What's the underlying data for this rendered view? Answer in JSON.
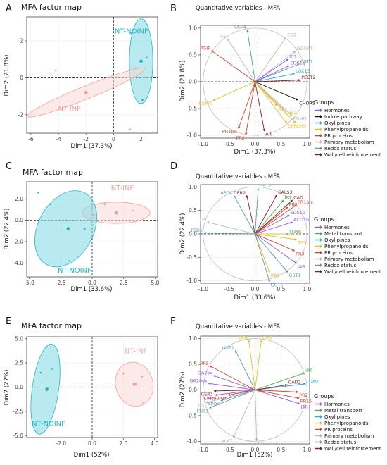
{
  "colors": {
    "nt_inf": "#f4a09a",
    "nt_inf_fill": "#f9d9d5",
    "nt_noinf": "#22b8c8",
    "nt_noinf_fill": "#7fd8e2",
    "Hormones": "#8b5cf6",
    "Indole pathway": "#111111",
    "Oxylipines": "#2aa9e0",
    "Phenylpropanoids": "#e7c31a",
    "PR proteins": "#d8402b",
    "Primary metabolism": "#b7b7b7",
    "Redox status": "#5b9aa8",
    "Wall/cell reinforcement": "#8b1a1a",
    "Metal transport": "#3db54a"
  },
  "panels": [
    {
      "letter": "A",
      "chart_data": {
        "type": "scatter",
        "title": "MFA factor map",
        "xlabel": "Dim1 (37.3%)",
        "ylabel": "Dim2 (21.8%)",
        "xlim": [
          -6.3,
          3.2
        ],
        "ylim": [
          -3.0,
          3.3
        ],
        "xticks": [
          -6,
          -4,
          -2,
          0,
          2
        ],
        "yticks": [
          -2,
          0,
          2
        ],
        "groups": [
          {
            "name": "NT-NOINF",
            "color": "nt_noinf",
            "label_at": [
              1.3,
              2.4
            ],
            "centroid": [
              2.0,
              0.9
            ],
            "ellipse": {
              "cx": 2.0,
              "cy": 0.9,
              "rx": 0.85,
              "ry": 2.3,
              "angle": 0
            },
            "points": [
              [
                1.3,
                2.4
              ],
              [
                2.4,
                1.1
              ],
              [
                2.1,
                -1.2
              ]
            ]
          },
          {
            "name": "NT-INF",
            "color": "nt_inf",
            "label_at": [
              -3.2,
              -1.8
            ],
            "centroid": [
              -2.0,
              -0.8
            ],
            "ellipse": {
              "cx": -2.0,
              "cy": -0.8,
              "rx": 4.6,
              "ry": 0.35,
              "angle": -22
            },
            "points": [
              [
                -4.2,
                0.4
              ],
              [
                -2.0,
                -0.8
              ],
              [
                1.2,
                -2.8
              ]
            ]
          }
        ]
      }
    },
    {
      "letter": "B",
      "chart_data": {
        "type": "correlation-circle",
        "title": "Quantitative variables - MFA",
        "xlabel": "Dim1 (37.3%)",
        "ylabel": "Dim2 (21.8%)",
        "xlim": [
          -1.05,
          1.05
        ],
        "ylim": [
          -1.05,
          1.05
        ],
        "ticks": [
          -1.0,
          -0.5,
          0.0,
          0.5,
          1.0
        ],
        "legend_title": "Groups",
        "legend": [
          "Hormones",
          "Indole pathway",
          "Oxylipines",
          "Phenylpropanoids",
          "PR proteins",
          "Primary metabolism",
          "Redox status",
          "Wall/cell reinforcement"
        ],
        "variables": [
          {
            "name": "GST4",
            "x": -0.15,
            "y": 0.97,
            "group": "Redox status"
          },
          {
            "name": "GS",
            "x": -0.53,
            "y": 0.8,
            "group": "Primary metabolism"
          },
          {
            "name": "CS2",
            "x": 0.6,
            "y": 0.83,
            "group": "Primary metabolism"
          },
          {
            "name": "PGIP",
            "x": -0.84,
            "y": 0.58,
            "group": "PR proteins"
          },
          {
            "name": "GOGAT",
            "x": 0.78,
            "y": 0.57,
            "group": "Primary metabolism"
          },
          {
            "name": "ICS",
            "x": 0.64,
            "y": 0.42,
            "group": "Hormones"
          },
          {
            "name": "EDS1b",
            "x": 0.66,
            "y": 0.3,
            "group": "Hormones"
          },
          {
            "name": "GST3",
            "x": 0.85,
            "y": 0.33,
            "group": "Redox status"
          },
          {
            "name": "LOX13",
            "x": 0.76,
            "y": 0.15,
            "group": "Oxylipines"
          },
          {
            "name": "PECT2",
            "x": 0.87,
            "y": 0.03,
            "group": "Wall/cell reinforcement"
          },
          {
            "name": "RDMT",
            "x": -0.81,
            "y": -0.35,
            "group": "Phenylpropanoids"
          },
          {
            "name": "CHORS",
            "x": 0.83,
            "y": -0.34,
            "group": "Indole pathway"
          },
          {
            "name": "GS2",
            "x": 0.42,
            "y": -0.45,
            "group": "Primary metabolism"
          },
          {
            "name": "CHS2",
            "x": 0.55,
            "y": -0.52,
            "group": "Phenylpropanoids"
          },
          {
            "name": "PGMD",
            "x": 0.71,
            "y": -0.63,
            "group": "Primary metabolism"
          },
          {
            "name": "DFR",
            "x": 0.61,
            "y": -0.77,
            "group": "Phenylpropanoids"
          },
          {
            "name": "CHS",
            "x": 0.78,
            "y": -0.77,
            "group": "Phenylpropanoids"
          },
          {
            "name": "PR1bis",
            "x": -0.32,
            "y": -0.87,
            "group": "PR proteins"
          },
          {
            "name": "PR2",
            "x": -0.18,
            "y": -0.99,
            "group": "PR proteins"
          },
          {
            "name": "Alli",
            "x": 0.18,
            "y": -0.92,
            "group": "Wall/cell reinforcement"
          }
        ]
      }
    },
    {
      "letter": "C",
      "chart_data": {
        "type": "scatter",
        "title": "MFA factor map",
        "xlabel": "Dim1 (33.6%)",
        "ylabel": "Dim2 (22.4%)",
        "xlim": [
          -5.2,
          5.2
        ],
        "ylim": [
          -5.3,
          3.6
        ],
        "xticks": [
          -5.0,
          -2.5,
          0.0,
          2.5,
          5.0
        ],
        "yticks": [
          -4,
          -2,
          0,
          2
        ],
        "groups": [
          {
            "name": "NT-INF",
            "color": "nt_inf",
            "label_at": [
              2.4,
              2.8
            ],
            "centroid": [
              1.9,
              0.7
            ],
            "ellipse": {
              "cx": 1.9,
              "cy": 0.7,
              "rx": 2.7,
              "ry": 1.0,
              "angle": 0
            },
            "points": [
              [
                1.0,
                1.5
              ],
              [
                3.2,
                0.9
              ],
              [
                2.0,
                0.6
              ],
              [
                0.1,
                0.5
              ]
            ]
          },
          {
            "name": "NT-NOINF",
            "color": "nt_noinf",
            "label_at": [
              -1.4,
              -4.9
            ],
            "centroid": [
              -1.9,
              -0.8
            ],
            "ellipse": {
              "cx": -2.1,
              "cy": -0.8,
              "rx": 2.2,
              "ry": 3.8,
              "angle": 28
            },
            "points": [
              [
                -4.3,
                2.6
              ],
              [
                -3.3,
                1.5
              ],
              [
                -1.9,
                -0.7
              ],
              [
                -0.6,
                -0.8
              ],
              [
                -1.8,
                -3.8
              ]
            ]
          }
        ]
      }
    },
    {
      "letter": "D",
      "chart_data": {
        "type": "correlation-circle",
        "title": "Quantitative variables - MFA",
        "xlabel": "Dim1 (33.6%)",
        "ylabel": "Dim2 (22.4%)",
        "xlim": [
          -1.05,
          1.05
        ],
        "ylim": [
          -1.05,
          1.05
        ],
        "ticks": [
          -1.0,
          -0.5,
          0.0,
          0.5,
          1.0
        ],
        "legend_title": "Groups",
        "legend": [
          "Hormones",
          "Metal transport",
          "Oxylipines",
          "Phenylpropanoids",
          "PR proteins",
          "Primary metabolism",
          "Redox status",
          "Wall/cell reinforcement"
        ],
        "variables": [
          {
            "name": "GST2",
            "x": 0.06,
            "y": 0.97,
            "group": "Redox status"
          },
          {
            "name": "APOX",
            "x": -0.41,
            "y": 0.82,
            "group": "Redox status"
          },
          {
            "name": "CER2",
            "x": -0.16,
            "y": 0.82,
            "group": "Wall/cell reinforcement"
          },
          {
            "name": "CALS3",
            "x": 0.42,
            "y": 0.83,
            "group": "Wall/cell reinforcement"
          },
          {
            "name": "IRT",
            "x": 0.55,
            "y": 0.72,
            "group": "Metal transport"
          },
          {
            "name": "CAD",
            "x": 0.72,
            "y": 0.72,
            "group": "Wall/cell reinforcement"
          },
          {
            "name": "PR1bis",
            "x": 0.8,
            "y": 0.62,
            "group": "PR proteins"
          },
          {
            "name": "PR2",
            "x": 0.63,
            "y": 0.57,
            "group": "PR proteins"
          },
          {
            "name": "EDS1b",
            "x": 0.66,
            "y": 0.4,
            "group": "Hormones"
          },
          {
            "name": "ACO1b",
            "x": 0.72,
            "y": 0.25,
            "group": "Hormones"
          },
          {
            "name": "GS",
            "x": -0.92,
            "y": 0.25,
            "group": "Primary metabolism"
          },
          {
            "name": "FSD1",
            "x": -0.99,
            "y": 0.02,
            "group": "Redox status"
          },
          {
            "name": "LOX6",
            "x": 0.64,
            "y": 0.0,
            "group": "Oxylipines"
          },
          {
            "name": "PAL",
            "x": 0.74,
            "y": 0.0,
            "group": "Phenylpropanoids"
          },
          {
            "name": "STS",
            "x": 0.8,
            "y": -0.12,
            "group": "Phenylpropanoids"
          },
          {
            "name": "PR3",
            "x": 0.76,
            "y": -0.36,
            "group": "PR proteins"
          },
          {
            "name": "JAR",
            "x": 0.8,
            "y": -0.63,
            "group": "Hormones"
          },
          {
            "name": "BAS",
            "x": 0.28,
            "y": -0.82,
            "group": "Phenylpropanoids"
          },
          {
            "name": "GST1",
            "x": 0.63,
            "y": -0.82,
            "group": "Redox status"
          },
          {
            "name": "GGT5",
            "x": 0.28,
            "y": -1.02,
            "group": "Redox status"
          }
        ]
      }
    },
    {
      "letter": "E",
      "chart_data": {
        "type": "scatter",
        "title": "MFA factor map",
        "xlabel": "Dim1 (52%)",
        "ylabel": "Dim2 (27%)",
        "xlim": [
          -4.2,
          4.2
        ],
        "ylim": [
          -5.2,
          5.2
        ],
        "xticks": [
          -2,
          0,
          2,
          4
        ],
        "yticks": [
          -5.0,
          -2.5,
          0.0,
          2.5,
          5.0
        ],
        "groups": [
          {
            "name": "NT-INF",
            "color": "nt_inf",
            "label_at": [
              2.8,
              3.5
            ],
            "centroid": [
              2.7,
              0.3
            ],
            "ellipse": {
              "cx": 2.7,
              "cy": 0.3,
              "rx": 1.2,
              "ry": 2.3,
              "angle": -15
            },
            "points": [
              [
                2.0,
                1.4
              ],
              [
                3.2,
                1.1
              ],
              [
                2.8,
                0.3
              ],
              [
                3.3,
                -1.6
              ]
            ]
          },
          {
            "name": "NT-NOINF",
            "color": "nt_noinf",
            "label_at": [
              -2.8,
              -4.0
            ],
            "centroid": [
              -2.9,
              -0.2
            ],
            "ellipse": {
              "cx": -3.0,
              "cy": -0.2,
              "rx": 0.85,
              "ry": 4.7,
              "angle": 8
            },
            "points": [
              [
                -3.3,
                1.5
              ],
              [
                -2.6,
                1.9
              ],
              [
                -2.9,
                -0.3
              ],
              [
                -3.0,
                -3.6
              ]
            ]
          }
        ]
      }
    },
    {
      "letter": "F",
      "chart_data": {
        "type": "correlation-circle",
        "title": "Quantitative variables - MFA",
        "xlabel": "Dim1 (52%)",
        "ylabel": "Dim2 (27%)",
        "xlim": [
          -1.05,
          1.05
        ],
        "ylim": [
          -1.05,
          1.05
        ],
        "ticks": [
          -1.0,
          -0.5,
          0.0,
          0.5,
          1.0
        ],
        "legend_title": "Groups",
        "legend": [
          "Hormones",
          "Metal transport",
          "Oxylipines",
          "Phenylpropanoids",
          "PR proteins",
          "Primary metabolism",
          "Redox status",
          "Wall/cell reinforcement"
        ],
        "variables": [
          {
            "name": "DFR",
            "x": -0.12,
            "y": 0.97,
            "group": "Phenylpropanoids"
          },
          {
            "name": "CHS",
            "x": 0.12,
            "y": 0.97,
            "group": "Phenylpropanoids"
          },
          {
            "name": "GST2",
            "x": -0.38,
            "y": 0.77,
            "group": "Redox status"
          },
          {
            "name": "PR5",
            "x": -0.87,
            "y": 0.47,
            "group": "PR proteins"
          },
          {
            "name": "GA2ox",
            "x": -0.8,
            "y": 0.28,
            "group": "Hormones"
          },
          {
            "name": "GA20ox",
            "x": -0.9,
            "y": 0.13,
            "group": "Hormones"
          },
          {
            "name": "IRT",
            "x": 0.95,
            "y": 0.33,
            "group": "Metal transport"
          },
          {
            "name": "LOX9",
            "x": 0.97,
            "y": 0.12,
            "group": "Oxylipines"
          },
          {
            "name": "CAD2",
            "x": 0.62,
            "y": 0.1,
            "group": "Wall/cell reinforcement"
          },
          {
            "name": "CER3",
            "x": -0.79,
            "y": -0.02,
            "group": "Wall/cell reinforcement"
          },
          {
            "name": "EIN3",
            "x": -0.77,
            "y": -0.1,
            "group": "Hormones"
          },
          {
            "name": "PR9-POX",
            "x": -0.52,
            "y": -0.1,
            "group": "PR proteins"
          },
          {
            "name": "APOX",
            "x": -0.66,
            "y": -0.21,
            "group": "Redox status"
          },
          {
            "name": "PR2",
            "x": 0.83,
            "y": -0.04,
            "group": "PR proteins"
          },
          {
            "name": "PR15",
            "x": 0.85,
            "y": -0.16,
            "group": "PR proteins"
          },
          {
            "name": "JAR",
            "x": 0.86,
            "y": -0.27,
            "group": "Hormones"
          },
          {
            "name": "GS",
            "x": -0.95,
            "y": -0.25,
            "group": "Primary metabolism"
          },
          {
            "name": "FSD1",
            "x": -0.88,
            "y": -0.35,
            "group": "Redox status"
          },
          {
            "name": "ALAT",
            "x": -0.42,
            "y": -0.93,
            "group": "Primary metabolism"
          },
          {
            "name": "NR",
            "x": 0.03,
            "y": -0.99,
            "group": "Primary metabolism"
          }
        ]
      }
    }
  ]
}
